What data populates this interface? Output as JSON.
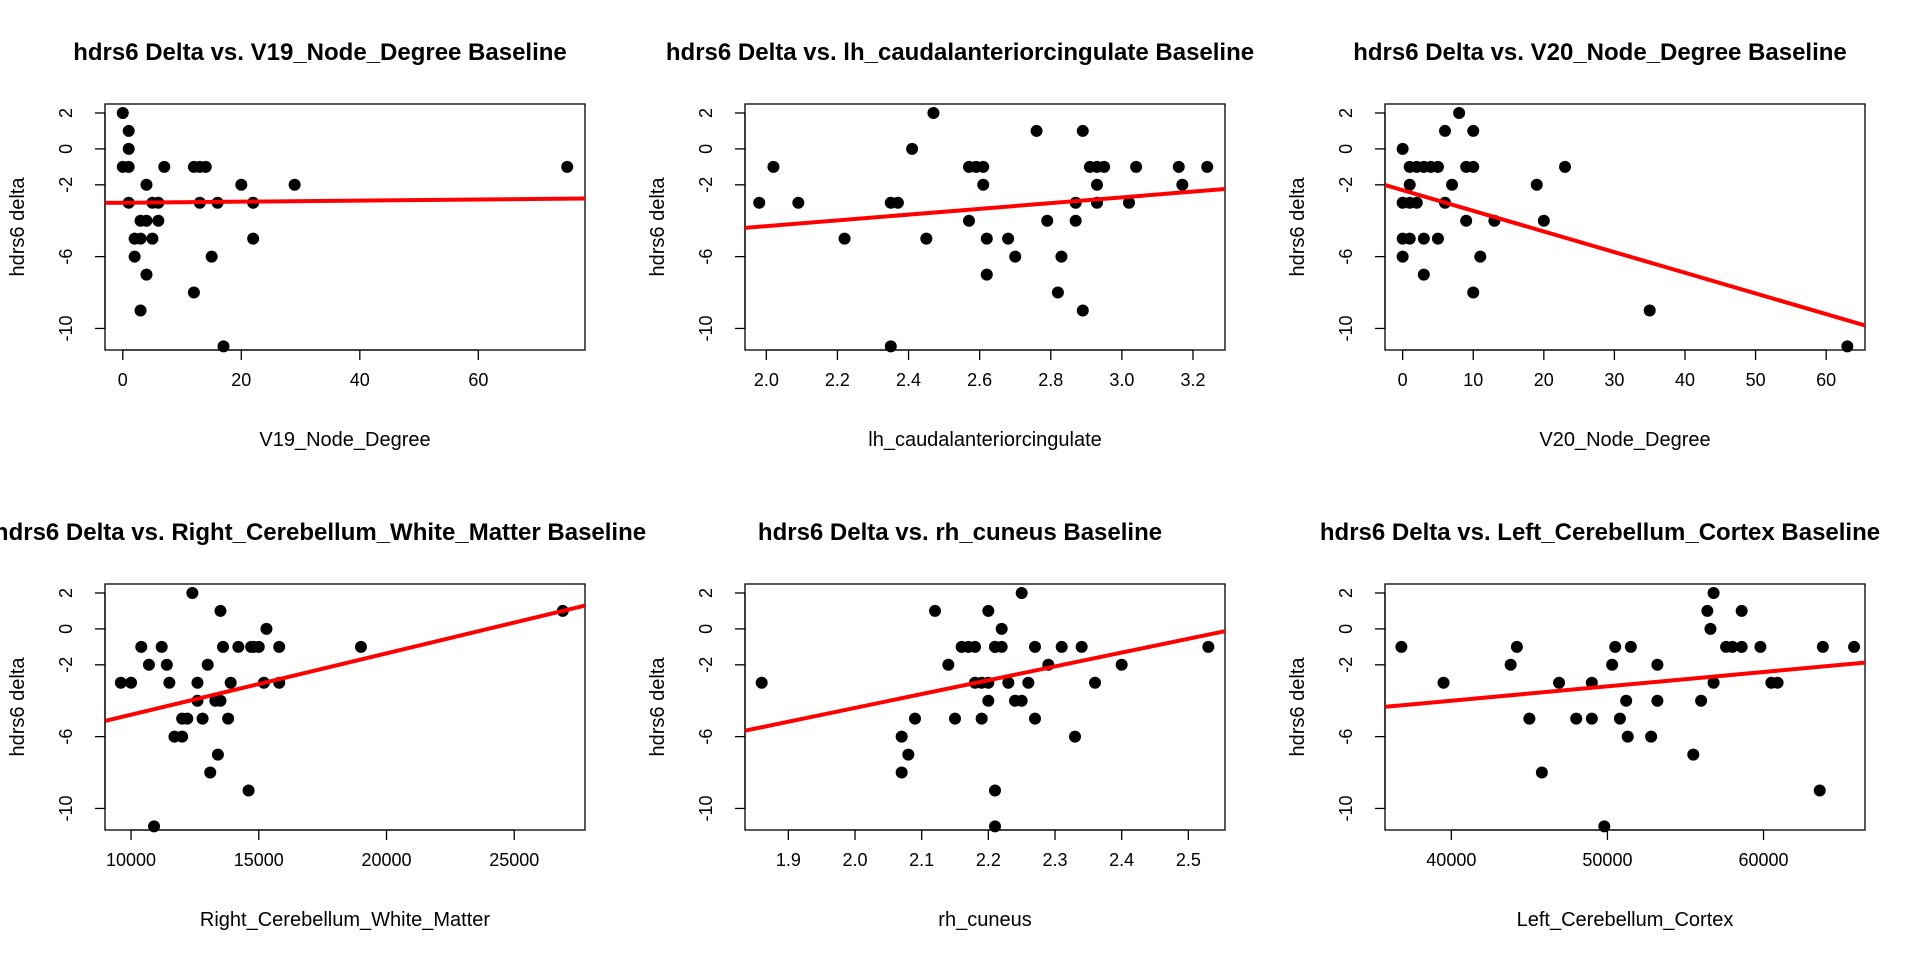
{
  "chart_data": [
    {
      "type": "scatter",
      "title": "hdrs6 Delta vs. V19_Node_Degree Baseline",
      "xlabel": "V19_Node_Degree",
      "ylabel": "hdrs6 delta",
      "xlim": [
        -3,
        78
      ],
      "ylim": [
        -11.2,
        2.5
      ],
      "xticks": [
        0,
        20,
        40,
        60
      ],
      "yticks": [
        2,
        0,
        -2,
        -6,
        -10
      ],
      "fit_line": {
        "color": "#ff0000",
        "intercept": -3.0,
        "slope": 0.003
      },
      "points": [
        [
          0,
          2
        ],
        [
          0,
          -1
        ],
        [
          1,
          1
        ],
        [
          1,
          0
        ],
        [
          1,
          -1
        ],
        [
          1,
          -3
        ],
        [
          2,
          -6
        ],
        [
          2,
          -5
        ],
        [
          3,
          -5
        ],
        [
          3,
          -4
        ],
        [
          3,
          -9
        ],
        [
          4,
          -2
        ],
        [
          4,
          -4
        ],
        [
          4,
          -7
        ],
        [
          5,
          -3
        ],
        [
          5,
          -5
        ],
        [
          6,
          -3
        ],
        [
          6,
          -4
        ],
        [
          7,
          -1
        ],
        [
          12,
          -8
        ],
        [
          12,
          -1
        ],
        [
          13,
          -1
        ],
        [
          13,
          -3
        ],
        [
          14,
          -1
        ],
        [
          15,
          -6
        ],
        [
          16,
          -3
        ],
        [
          17,
          -11
        ],
        [
          20,
          -2
        ],
        [
          22,
          -3
        ],
        [
          22,
          -5
        ],
        [
          29,
          -2
        ],
        [
          75,
          -1
        ]
      ]
    },
    {
      "type": "scatter",
      "title": "hdrs6 Delta vs. lh_caudalanteriorcingulate Baseline",
      "xlabel": "lh_caudalanteriorcingulate",
      "ylabel": "hdrs6 delta",
      "xlim": [
        1.94,
        3.29
      ],
      "ylim": [
        -11.2,
        2.5
      ],
      "xticks": [
        2.0,
        2.2,
        2.4,
        2.6,
        2.8,
        3.0,
        3.2
      ],
      "yticks": [
        2,
        0,
        -2,
        -6,
        -10
      ],
      "fit_line": {
        "color": "#ff0000",
        "intercept": -7.5,
        "slope": 1.6
      },
      "points": [
        [
          1.98,
          -3
        ],
        [
          2.02,
          -1
        ],
        [
          2.09,
          -3
        ],
        [
          2.22,
          -5
        ],
        [
          2.35,
          -3
        ],
        [
          2.35,
          -11
        ],
        [
          2.37,
          -3
        ],
        [
          2.41,
          0
        ],
        [
          2.45,
          -5
        ],
        [
          2.47,
          2
        ],
        [
          2.57,
          -1
        ],
        [
          2.57,
          -4
        ],
        [
          2.59,
          -1
        ],
        [
          2.61,
          -1
        ],
        [
          2.61,
          -2
        ],
        [
          2.62,
          -5
        ],
        [
          2.62,
          -7
        ],
        [
          2.68,
          -5
        ],
        [
          2.7,
          -6
        ],
        [
          2.76,
          1
        ],
        [
          2.79,
          -4
        ],
        [
          2.82,
          -8
        ],
        [
          2.83,
          -6
        ],
        [
          2.87,
          -3
        ],
        [
          2.87,
          -4
        ],
        [
          2.89,
          -9
        ],
        [
          2.89,
          1
        ],
        [
          2.91,
          -1
        ],
        [
          2.93,
          -1
        ],
        [
          2.93,
          -2
        ],
        [
          2.93,
          -3
        ],
        [
          2.95,
          -1
        ],
        [
          3.02,
          -3
        ],
        [
          3.04,
          -1
        ],
        [
          3.16,
          -1
        ],
        [
          3.17,
          -2
        ],
        [
          3.24,
          -1
        ]
      ]
    },
    {
      "type": "scatter",
      "title": "hdrs6 Delta vs. V20_Node_Degree Baseline",
      "xlabel": "V20_Node_Degree",
      "ylabel": "hdrs6 delta",
      "xlim": [
        -2.5,
        65.5
      ],
      "ylim": [
        -11.2,
        2.5
      ],
      "xticks": [
        0,
        10,
        20,
        30,
        40,
        50,
        60
      ],
      "yticks": [
        2,
        0,
        -2,
        -6,
        -10
      ],
      "fit_line": {
        "color": "#ff0000",
        "intercept": -2.3,
        "slope": -0.115
      },
      "points": [
        [
          0,
          0
        ],
        [
          0,
          -3
        ],
        [
          0,
          -5
        ],
        [
          0,
          -6
        ],
        [
          1,
          -1
        ],
        [
          1,
          -2
        ],
        [
          1,
          -3
        ],
        [
          1,
          -5
        ],
        [
          2,
          -1
        ],
        [
          2,
          -3
        ],
        [
          3,
          -1
        ],
        [
          3,
          -5
        ],
        [
          3,
          -7
        ],
        [
          4,
          -1
        ],
        [
          5,
          -1
        ],
        [
          5,
          -5
        ],
        [
          6,
          1
        ],
        [
          6,
          -3
        ],
        [
          7,
          -2
        ],
        [
          8,
          2
        ],
        [
          9,
          -1
        ],
        [
          9,
          -4
        ],
        [
          10,
          1
        ],
        [
          10,
          -1
        ],
        [
          10,
          -8
        ],
        [
          11,
          -6
        ],
        [
          13,
          -4
        ],
        [
          19,
          -2
        ],
        [
          20,
          -4
        ],
        [
          23,
          -1
        ],
        [
          35,
          -9
        ],
        [
          63,
          -11
        ]
      ]
    },
    {
      "type": "scatter",
      "title": "hdrs6 Delta vs. Right_Cerebellum_White_Matter Baseline",
      "xlabel": "Right_Cerebellum_White_Matter",
      "ylabel": "hdrs6 delta",
      "xlim": [
        8980,
        27770
      ],
      "ylim": [
        -11.2,
        2.5
      ],
      "xticks": [
        10000,
        15000,
        20000,
        25000
      ],
      "yticks": [
        2,
        0,
        -2,
        -6,
        -10
      ],
      "fit_line": {
        "color": "#ff0000",
        "intercept": -8.2,
        "slope": 0.000342
      },
      "points": [
        [
          9600,
          -3
        ],
        [
          10000,
          -3
        ],
        [
          10400,
          -1
        ],
        [
          10700,
          -2
        ],
        [
          10900,
          -11
        ],
        [
          11200,
          -1
        ],
        [
          11400,
          -2
        ],
        [
          11500,
          -3
        ],
        [
          11700,
          -6
        ],
        [
          12000,
          -5
        ],
        [
          12000,
          -6
        ],
        [
          12200,
          -5
        ],
        [
          12400,
          2
        ],
        [
          12600,
          -3
        ],
        [
          12600,
          -4
        ],
        [
          12800,
          -5
        ],
        [
          13000,
          -2
        ],
        [
          13100,
          -8
        ],
        [
          13300,
          -4
        ],
        [
          13400,
          -7
        ],
        [
          13500,
          -4
        ],
        [
          13500,
          1
        ],
        [
          13600,
          -1
        ],
        [
          13800,
          -5
        ],
        [
          13900,
          -3
        ],
        [
          14200,
          -1
        ],
        [
          14600,
          -9
        ],
        [
          14700,
          -1
        ],
        [
          14800,
          -1
        ],
        [
          15000,
          -1
        ],
        [
          15200,
          -3
        ],
        [
          15300,
          0
        ],
        [
          15800,
          -1
        ],
        [
          15800,
          -3
        ],
        [
          19000,
          -1
        ],
        [
          26900,
          1
        ]
      ]
    },
    {
      "type": "scatter",
      "title": "hdrs6 Delta vs. rh_cuneus Baseline",
      "xlabel": "rh_cuneus",
      "ylabel": "hdrs6 delta",
      "xlim": [
        1.835,
        2.555
      ],
      "ylim": [
        -11.2,
        2.5
      ],
      "xticks": [
        1.9,
        2.0,
        2.1,
        2.2,
        2.3,
        2.4,
        2.5
      ],
      "yticks": [
        2,
        0,
        -2,
        -6,
        -10
      ],
      "fit_line": {
        "color": "#ff0000",
        "intercept": -19.8,
        "slope": 7.7
      },
      "points": [
        [
          1.86,
          -3
        ],
        [
          2.07,
          -6
        ],
        [
          2.07,
          -8
        ],
        [
          2.08,
          -7
        ],
        [
          2.09,
          -5
        ],
        [
          2.12,
          1
        ],
        [
          2.14,
          -2
        ],
        [
          2.15,
          -5
        ],
        [
          2.16,
          -1
        ],
        [
          2.17,
          -1
        ],
        [
          2.18,
          -1
        ],
        [
          2.18,
          -3
        ],
        [
          2.19,
          -3
        ],
        [
          2.19,
          -5
        ],
        [
          2.2,
          -3
        ],
        [
          2.2,
          -4
        ],
        [
          2.2,
          1
        ],
        [
          2.21,
          -11
        ],
        [
          2.21,
          -9
        ],
        [
          2.21,
          -1
        ],
        [
          2.21,
          -1
        ],
        [
          2.22,
          0
        ],
        [
          2.22,
          -1
        ],
        [
          2.23,
          -3
        ],
        [
          2.24,
          -4
        ],
        [
          2.25,
          2
        ],
        [
          2.25,
          -4
        ],
        [
          2.26,
          -3
        ],
        [
          2.27,
          -5
        ],
        [
          2.27,
          -1
        ],
        [
          2.29,
          -2
        ],
        [
          2.31,
          -1
        ],
        [
          2.33,
          -6
        ],
        [
          2.34,
          -1
        ],
        [
          2.36,
          -3
        ],
        [
          2.4,
          -2
        ],
        [
          2.53,
          -1
        ]
      ]
    },
    {
      "type": "scatter",
      "title": "hdrs6 Delta vs. Left_Cerebellum_Cortex Baseline",
      "xlabel": "Left_Cerebellum_Cortex",
      "ylabel": "hdrs6 delta",
      "xlim": [
        35750,
        66500
      ],
      "ylim": [
        -11.2,
        2.5
      ],
      "xticks": [
        40000,
        50000,
        60000
      ],
      "yticks": [
        2,
        0,
        -2,
        -6,
        -10
      ],
      "fit_line": {
        "color": "#ff0000",
        "intercept": -7.2,
        "slope": 8e-05
      },
      "points": [
        [
          36800,
          -1
        ],
        [
          39500,
          -3
        ],
        [
          43800,
          -2
        ],
        [
          44200,
          -1
        ],
        [
          45000,
          -5
        ],
        [
          45800,
          -8
        ],
        [
          46900,
          -3
        ],
        [
          48000,
          -5
        ],
        [
          49000,
          -3
        ],
        [
          49000,
          -5
        ],
        [
          49800,
          -11
        ],
        [
          50300,
          -2
        ],
        [
          50500,
          -1
        ],
        [
          50800,
          -5
        ],
        [
          51200,
          -4
        ],
        [
          51300,
          -6
        ],
        [
          51500,
          -1
        ],
        [
          52800,
          -6
        ],
        [
          53200,
          -2
        ],
        [
          53200,
          -4
        ],
        [
          55500,
          -7
        ],
        [
          56000,
          -4
        ],
        [
          56400,
          1
        ],
        [
          56600,
          0
        ],
        [
          56800,
          2
        ],
        [
          56800,
          -3
        ],
        [
          57600,
          -1
        ],
        [
          58000,
          -1
        ],
        [
          58600,
          1
        ],
        [
          58600,
          -1
        ],
        [
          59800,
          -1
        ],
        [
          60500,
          -3
        ],
        [
          60900,
          -3
        ],
        [
          63600,
          -9
        ],
        [
          63800,
          -1
        ],
        [
          65800,
          -1
        ]
      ]
    }
  ]
}
